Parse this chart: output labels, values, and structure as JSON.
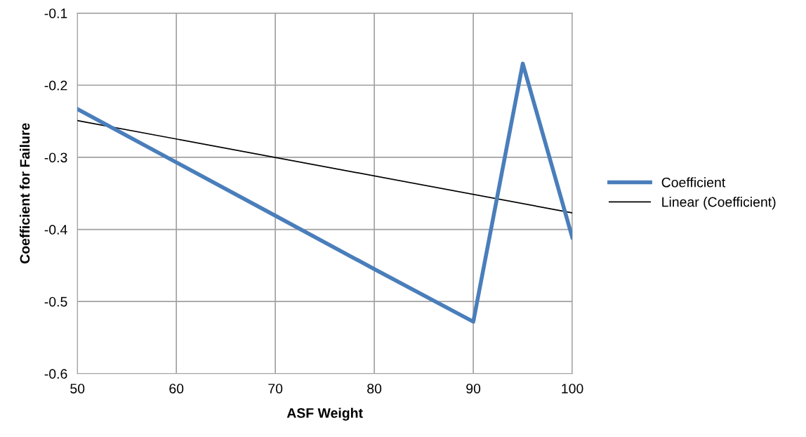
{
  "chart_data": {
    "type": "line",
    "xlabel": "ASF Weight",
    "ylabel": "Coefficient for Failure",
    "series": [
      {
        "name": "Coefficient",
        "color": "#4a7ebb",
        "x": [
          50,
          60,
          70,
          80,
          90,
          95,
          100
        ],
        "values": [
          -0.233,
          -0.307,
          -0.381,
          -0.455,
          -0.528,
          -0.17,
          -0.411
        ]
      },
      {
        "name": "Linear (Coefficient)",
        "color": "#000000",
        "x": [
          50,
          100
        ],
        "values": [
          -0.249,
          -0.377
        ]
      }
    ],
    "xlim": [
      50,
      100
    ],
    "xticks": [
      50,
      60,
      70,
      80,
      90,
      100
    ],
    "ylim": [
      -0.6,
      -0.1
    ],
    "yticks": [
      -0.6,
      -0.5,
      -0.4,
      -0.3,
      -0.2,
      -0.1
    ],
    "grid": true,
    "legend": "right",
    "marker": "none",
    "line_style": "solid"
  }
}
